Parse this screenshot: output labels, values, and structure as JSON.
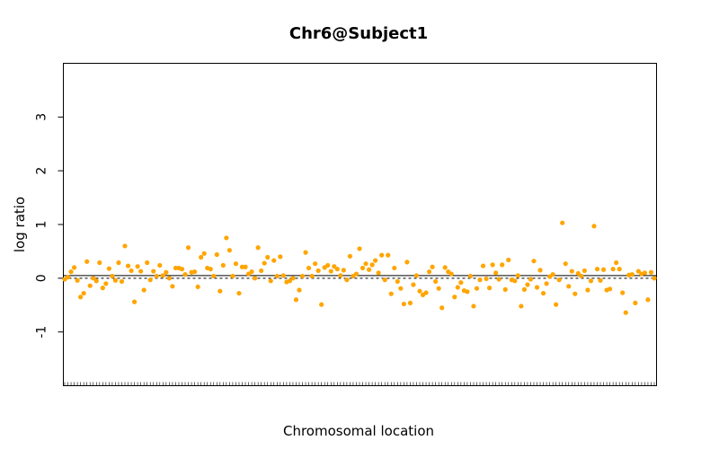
{
  "chart_data": {
    "type": "scatter",
    "title": "Chr6@Subject1",
    "xlabel": "Chromosomal location",
    "ylabel": "log ratio",
    "ylim": [
      -2,
      4
    ],
    "yticks": [
      -1,
      0,
      1,
      2,
      3
    ],
    "ytick_labels": [
      "-1",
      "0",
      "1",
      "2",
      "3"
    ],
    "grid": false,
    "reference_lines": [
      {
        "y": 0.05,
        "style": "solid"
      },
      {
        "y": 0.0,
        "style": "dashed"
      }
    ],
    "point_color": "#ffa500",
    "series": [
      {
        "values": [
          -0.02,
          0.02,
          0.12,
          0.2,
          -0.04,
          -0.35,
          -0.28,
          0.31,
          -0.14,
          0.0,
          -0.05,
          0.29,
          -0.18,
          -0.1,
          0.18,
          0.04,
          -0.04,
          0.29,
          -0.06,
          0.6,
          0.23,
          0.14,
          -0.44,
          0.22,
          0.13,
          -0.22,
          0.29,
          -0.03,
          0.13,
          0.04,
          0.24,
          0.05,
          0.11,
          0.0,
          -0.15,
          0.19,
          0.19,
          0.17,
          0.07,
          0.57,
          0.11,
          0.12,
          -0.16,
          0.39,
          0.46,
          0.19,
          0.17,
          0.04,
          0.44,
          -0.24,
          0.24,
          0.75,
          0.52,
          0.04,
          0.27,
          -0.28,
          0.21,
          0.21,
          0.08,
          0.12,
          0.0,
          0.57,
          0.14,
          0.28,
          0.39,
          -0.05,
          0.33,
          0.04,
          0.4,
          0.05,
          -0.07,
          -0.05,
          0.0,
          -0.4,
          -0.22,
          0.04,
          0.48,
          0.19,
          0.04,
          0.27,
          0.14,
          -0.49,
          0.2,
          0.24,
          0.13,
          0.22,
          0.17,
          0.05,
          0.15,
          -0.03,
          0.41,
          0.04,
          0.08,
          0.55,
          0.19,
          0.27,
          0.16,
          0.25,
          0.33,
          0.1,
          0.43,
          -0.03,
          0.43,
          -0.29,
          0.19,
          -0.06,
          -0.19,
          -0.48,
          0.3,
          -0.46,
          -0.12,
          0.05,
          -0.24,
          -0.31,
          -0.27,
          0.12,
          0.21,
          -0.06,
          -0.19,
          -0.55,
          0.2,
          0.12,
          0.08,
          -0.35,
          -0.17,
          -0.08,
          -0.23,
          -0.25,
          0.04,
          -0.52,
          -0.19,
          -0.03,
          0.23,
          -0.01,
          -0.18,
          0.25,
          0.1,
          -0.02,
          0.25,
          -0.21,
          0.34,
          -0.03,
          -0.05,
          0.05,
          -0.52,
          -0.21,
          -0.12,
          -0.02,
          0.32,
          -0.17,
          0.15,
          -0.28,
          -0.1,
          0.03,
          0.07,
          -0.49,
          -0.03,
          1.03,
          0.27,
          -0.15,
          0.13,
          -0.29,
          0.09,
          0.04,
          0.14,
          -0.22,
          -0.05,
          0.97,
          0.17,
          -0.04,
          0.16,
          -0.22,
          -0.2,
          0.17,
          0.29,
          0.17,
          -0.27,
          -0.64,
          0.06,
          0.07,
          -0.46,
          0.13,
          0.08,
          0.1,
          -0.4,
          0.11,
          0.0
        ]
      }
    ]
  }
}
